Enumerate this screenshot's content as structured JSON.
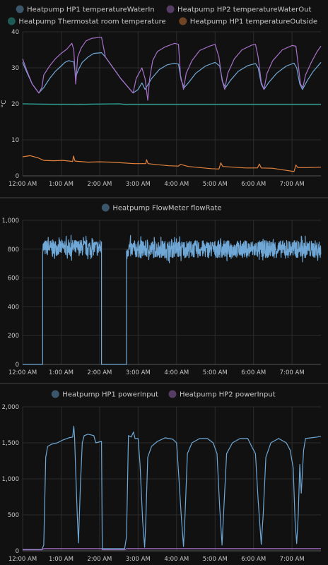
{
  "chart_data": [
    {
      "type": "line",
      "ylabel": "°C",
      "ylim": [
        0,
        40
      ],
      "yticks": [
        0,
        10,
        20,
        30,
        40
      ],
      "xticks": [
        "12:00 AM",
        "1:00 AM",
        "2:00 AM",
        "3:00 AM",
        "4:00 AM",
        "5:00 AM",
        "6:00 AM",
        "7:00 AM"
      ],
      "xlim_hours": [
        0,
        7.75
      ],
      "grid": true,
      "legend": "top",
      "series": [
        {
          "name": "Heatpump HP1 temperatureWaterIn",
          "color": "#6fa8d6",
          "points": [
            [
              0.0,
              31.5
            ],
            [
              0.1,
              29.0
            ],
            [
              0.25,
              25.5
            ],
            [
              0.42,
              23.0
            ],
            [
              0.55,
              24.5
            ],
            [
              0.7,
              27.0
            ],
            [
              0.85,
              29.0
            ],
            [
              1.0,
              30.5
            ],
            [
              1.1,
              31.5
            ],
            [
              1.2,
              32.0
            ],
            [
              1.33,
              31.6
            ],
            [
              1.38,
              27.5
            ],
            [
              1.45,
              29.5
            ],
            [
              1.55,
              31.5
            ],
            [
              1.7,
              33.0
            ],
            [
              1.85,
              34.0
            ],
            [
              2.05,
              34.2
            ],
            [
              2.15,
              33.0
            ],
            [
              2.35,
              30.0
            ],
            [
              2.55,
              27.0
            ],
            [
              2.75,
              24.5
            ],
            [
              2.87,
              23.0
            ],
            [
              3.0,
              24.0
            ],
            [
              3.1,
              25.8
            ],
            [
              3.18,
              24.0
            ],
            [
              3.35,
              27.0
            ],
            [
              3.55,
              29.5
            ],
            [
              3.75,
              30.8
            ],
            [
              3.95,
              31.3
            ],
            [
              4.05,
              31.0
            ],
            [
              4.12,
              26.5
            ],
            [
              4.2,
              24.5
            ],
            [
              4.32,
              26.0
            ],
            [
              4.5,
              28.5
            ],
            [
              4.75,
              30.5
            ],
            [
              5.0,
              31.5
            ],
            [
              5.12,
              30.5
            ],
            [
              5.2,
              26.0
            ],
            [
              5.27,
              24.5
            ],
            [
              5.4,
              26.5
            ],
            [
              5.6,
              29.0
            ],
            [
              5.85,
              30.6
            ],
            [
              6.05,
              31.2
            ],
            [
              6.12,
              30.0
            ],
            [
              6.2,
              25.5
            ],
            [
              6.27,
              24.0
            ],
            [
              6.4,
              26.0
            ],
            [
              6.6,
              28.5
            ],
            [
              6.85,
              30.5
            ],
            [
              7.05,
              31.3
            ],
            [
              7.12,
              30.0
            ],
            [
              7.2,
              25.5
            ],
            [
              7.27,
              24.0
            ],
            [
              7.4,
              26.5
            ],
            [
              7.55,
              29.0
            ],
            [
              7.75,
              31.5
            ]
          ]
        },
        {
          "name": "Heatpump HP2 temperatureWaterOut",
          "color": "#a871c9",
          "points": [
            [
              0.0,
              32.5
            ],
            [
              0.1,
              29.5
            ],
            [
              0.25,
              25.5
            ],
            [
              0.42,
              23.0
            ],
            [
              0.5,
              24.5
            ],
            [
              0.55,
              28.0
            ],
            [
              0.7,
              30.5
            ],
            [
              0.85,
              32.5
            ],
            [
              1.0,
              34.0
            ],
            [
              1.15,
              35.2
            ],
            [
              1.28,
              36.8
            ],
            [
              1.33,
              35.0
            ],
            [
              1.38,
              25.5
            ],
            [
              1.43,
              33.0
            ],
            [
              1.52,
              35.5
            ],
            [
              1.65,
              37.5
            ],
            [
              1.8,
              38.2
            ],
            [
              2.05,
              38.5
            ],
            [
              2.15,
              33.0
            ],
            [
              2.35,
              30.0
            ],
            [
              2.55,
              27.0
            ],
            [
              2.75,
              24.5
            ],
            [
              2.87,
              23.0
            ],
            [
              2.95,
              27.0
            ],
            [
              3.1,
              30.0
            ],
            [
              3.18,
              27.0
            ],
            [
              3.25,
              21.0
            ],
            [
              3.3,
              27.0
            ],
            [
              3.38,
              32.0
            ],
            [
              3.5,
              34.5
            ],
            [
              3.7,
              35.8
            ],
            [
              3.95,
              36.8
            ],
            [
              4.05,
              36.5
            ],
            [
              4.1,
              28.0
            ],
            [
              4.18,
              24.0
            ],
            [
              4.25,
              28.5
            ],
            [
              4.4,
              32.0
            ],
            [
              4.6,
              34.8
            ],
            [
              4.85,
              36.0
            ],
            [
              5.0,
              36.5
            ],
            [
              5.1,
              33.0
            ],
            [
              5.18,
              26.5
            ],
            [
              5.25,
              24.0
            ],
            [
              5.33,
              28.5
            ],
            [
              5.5,
              32.5
            ],
            [
              5.7,
              35.0
            ],
            [
              5.95,
              36.3
            ],
            [
              6.05,
              36.5
            ],
            [
              6.12,
              33.0
            ],
            [
              6.2,
              26.0
            ],
            [
              6.27,
              24.0
            ],
            [
              6.35,
              28.5
            ],
            [
              6.5,
              32.0
            ],
            [
              6.75,
              35.0
            ],
            [
              7.0,
              36.2
            ],
            [
              7.1,
              36.0
            ],
            [
              7.17,
              30.0
            ],
            [
              7.22,
              25.5
            ],
            [
              7.28,
              24.5
            ],
            [
              7.35,
              28.0
            ],
            [
              7.5,
              31.5
            ],
            [
              7.65,
              34.5
            ],
            [
              7.75,
              36.0
            ]
          ]
        },
        {
          "name": "Heatpump Thermostat room temperature",
          "color": "#2eb3a6",
          "points": [
            [
              0.0,
              20.0
            ],
            [
              0.5,
              19.9
            ],
            [
              1.5,
              19.8
            ],
            [
              1.75,
              19.9
            ],
            [
              2.5,
              20.0
            ],
            [
              2.7,
              19.8
            ],
            [
              4.0,
              19.8
            ],
            [
              6.0,
              19.8
            ],
            [
              7.75,
              19.8
            ]
          ]
        },
        {
          "name": "Heatpump HP1 temperatureOutside",
          "color": "#e3823d",
          "points": [
            [
              0.0,
              5.3
            ],
            [
              0.2,
              5.6
            ],
            [
              0.4,
              5.0
            ],
            [
              0.55,
              4.3
            ],
            [
              0.8,
              4.2
            ],
            [
              1.05,
              4.3
            ],
            [
              1.3,
              4.0
            ],
            [
              1.32,
              5.5
            ],
            [
              1.36,
              4.1
            ],
            [
              1.7,
              3.8
            ],
            [
              2.0,
              3.9
            ],
            [
              2.3,
              3.8
            ],
            [
              2.6,
              3.6
            ],
            [
              2.9,
              3.4
            ],
            [
              3.2,
              3.4
            ],
            [
              3.22,
              4.5
            ],
            [
              3.26,
              3.4
            ],
            [
              3.5,
              3.1
            ],
            [
              3.8,
              2.8
            ],
            [
              4.05,
              2.7
            ],
            [
              4.1,
              3.2
            ],
            [
              4.3,
              2.6
            ],
            [
              4.6,
              2.3
            ],
            [
              4.9,
              2.0
            ],
            [
              5.1,
              1.9
            ],
            [
              5.15,
              3.6
            ],
            [
              5.2,
              2.6
            ],
            [
              5.5,
              2.4
            ],
            [
              5.8,
              2.2
            ],
            [
              6.1,
              2.2
            ],
            [
              6.15,
              3.3
            ],
            [
              6.2,
              2.2
            ],
            [
              6.5,
              2.1
            ],
            [
              6.8,
              1.6
            ],
            [
              7.05,
              1.2
            ],
            [
              7.1,
              3.0
            ],
            [
              7.15,
              2.3
            ],
            [
              7.4,
              2.3
            ],
            [
              7.75,
              2.4
            ]
          ]
        }
      ]
    },
    {
      "type": "line",
      "ylim": [
        0,
        1000
      ],
      "yticks": [
        "0",
        "200",
        "400",
        "600",
        "800",
        "1,000"
      ],
      "xticks": [
        "12:00 AM",
        "1:00 AM",
        "2:00 AM",
        "3:00 AM",
        "4:00 AM",
        "5:00 AM",
        "6:00 AM",
        "7:00 AM"
      ],
      "xlim_hours": [
        0,
        7.75
      ],
      "grid": true,
      "legend": "top",
      "series": [
        {
          "name": "Heatpump FlowMeter flowRate",
          "color": "#6fa8d6",
          "segments": [
            {
              "start": 0.0,
              "end": 0.52,
              "base": 0
            },
            {
              "start": 0.52,
              "end": 2.05,
              "base": 810,
              "noise": 55
            },
            {
              "start": 2.05,
              "end": 2.7,
              "base": 0
            },
            {
              "start": 2.7,
              "end": 7.75,
              "base": 800,
              "noise": 60
            }
          ]
        }
      ]
    },
    {
      "type": "line",
      "ylim": [
        0,
        2000
      ],
      "yticks": [
        "0",
        "500",
        "1,000",
        "1,500",
        "2,000"
      ],
      "xticks": [
        "12:00 AM",
        "1:00 AM",
        "2:00 AM",
        "3:00 AM",
        "4:00 AM",
        "5:00 AM",
        "6:00 AM",
        "7:00 AM"
      ],
      "xlim_hours": [
        0,
        7.75
      ],
      "grid": true,
      "legend": "top",
      "series": [
        {
          "name": "Heatpump HP1 powerInput",
          "color": "#6fa8d6",
          "points": [
            [
              0.0,
              20
            ],
            [
              0.5,
              20
            ],
            [
              0.55,
              80
            ],
            [
              0.6,
              1300
            ],
            [
              0.65,
              1450
            ],
            [
              0.75,
              1480
            ],
            [
              0.9,
              1500
            ],
            [
              1.05,
              1540
            ],
            [
              1.2,
              1570
            ],
            [
              1.3,
              1580
            ],
            [
              1.33,
              1730
            ],
            [
              1.35,
              1580
            ],
            [
              1.38,
              1100
            ],
            [
              1.42,
              500
            ],
            [
              1.45,
              110
            ],
            [
              1.5,
              900
            ],
            [
              1.55,
              1500
            ],
            [
              1.6,
              1600
            ],
            [
              1.7,
              1620
            ],
            [
              1.85,
              1600
            ],
            [
              1.9,
              1500
            ],
            [
              2.05,
              1520
            ],
            [
              2.07,
              30
            ],
            [
              2.65,
              30
            ],
            [
              2.7,
              200
            ],
            [
              2.75,
              1600
            ],
            [
              2.82,
              1580
            ],
            [
              2.88,
              1650
            ],
            [
              2.92,
              1560
            ],
            [
              3.0,
              1560
            ],
            [
              3.05,
              1200
            ],
            [
              3.12,
              400
            ],
            [
              3.17,
              50
            ],
            [
              3.2,
              400
            ],
            [
              3.25,
              1300
            ],
            [
              3.35,
              1450
            ],
            [
              3.5,
              1520
            ],
            [
              3.7,
              1570
            ],
            [
              3.9,
              1550
            ],
            [
              4.0,
              1500
            ],
            [
              4.05,
              1100
            ],
            [
              4.12,
              500
            ],
            [
              4.18,
              60
            ],
            [
              4.22,
              500
            ],
            [
              4.28,
              1350
            ],
            [
              4.4,
              1500
            ],
            [
              4.6,
              1560
            ],
            [
              4.8,
              1560
            ],
            [
              4.95,
              1500
            ],
            [
              5.05,
              1350
            ],
            [
              5.12,
              600
            ],
            [
              5.18,
              80
            ],
            [
              5.22,
              500
            ],
            [
              5.3,
              1350
            ],
            [
              5.45,
              1500
            ],
            [
              5.65,
              1560
            ],
            [
              5.85,
              1560
            ],
            [
              5.95,
              1450
            ],
            [
              6.05,
              1350
            ],
            [
              6.12,
              700
            ],
            [
              6.2,
              90
            ],
            [
              6.25,
              500
            ],
            [
              6.32,
              1300
            ],
            [
              6.45,
              1500
            ],
            [
              6.65,
              1560
            ],
            [
              6.85,
              1500
            ],
            [
              6.95,
              1400
            ],
            [
              7.03,
              1150
            ],
            [
              7.08,
              400
            ],
            [
              7.12,
              100
            ],
            [
              7.16,
              500
            ],
            [
              7.2,
              1200
            ],
            [
              7.24,
              800
            ],
            [
              7.3,
              1400
            ],
            [
              7.35,
              1560
            ],
            [
              7.5,
              1570
            ],
            [
              7.65,
              1580
            ],
            [
              7.75,
              1590
            ]
          ]
        },
        {
          "name": "Heatpump HP2 powerInput",
          "color": "#a871c9",
          "points": [
            [
              0.0,
              15
            ],
            [
              0.5,
              15
            ],
            [
              0.55,
              30
            ],
            [
              2.05,
              30
            ],
            [
              2.07,
              15
            ],
            [
              2.65,
              15
            ],
            [
              2.7,
              30
            ],
            [
              7.75,
              30
            ]
          ]
        }
      ]
    }
  ]
}
